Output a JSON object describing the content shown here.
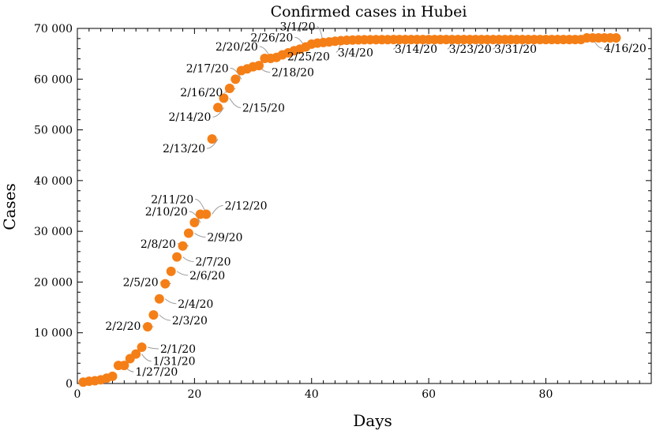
{
  "chart_data": {
    "type": "scatter",
    "title": "Confirmed cases in Hubei",
    "xlabel": "Days",
    "ylabel": "Cases",
    "xlim": [
      0,
      98
    ],
    "ylim": [
      0,
      70000
    ],
    "xticks": [
      0,
      20,
      40,
      60,
      80
    ],
    "xtick_labels": [
      "0",
      "20",
      "40",
      "60",
      "80"
    ],
    "yticks": [
      0,
      10000,
      20000,
      30000,
      40000,
      50000,
      60000,
      70000
    ],
    "ytick_labels": [
      "0",
      "10 000",
      "20 000",
      "30 000",
      "40 000",
      "50 000",
      "60 000",
      "70 000"
    ],
    "grid": false,
    "marker_color": "#f57f17",
    "series": [
      {
        "x": [
          1,
          2,
          3,
          4,
          5,
          6,
          7,
          8,
          9,
          10,
          11,
          12,
          13,
          14,
          15,
          16,
          17,
          18,
          19,
          20,
          21,
          22,
          23,
          24,
          25,
          26,
          27,
          28,
          29,
          30,
          31,
          32,
          33,
          34,
          35,
          36,
          37,
          38,
          39,
          40,
          41,
          42,
          43,
          44,
          45,
          46,
          47,
          48,
          49,
          50,
          51,
          52,
          53,
          54,
          55,
          56,
          57,
          58,
          59,
          60,
          61,
          62,
          63,
          64,
          65,
          66,
          67,
          68,
          69,
          70,
          71,
          72,
          73,
          74,
          75,
          76,
          77,
          78,
          79,
          80,
          81,
          82,
          83,
          84,
          85,
          86,
          87,
          88,
          89,
          90,
          91,
          92
        ],
        "y": [
          270,
          444,
          549,
          729,
          1052,
          1423,
          3554,
          3554,
          4903,
          5806,
          7153,
          11177,
          13522,
          16678,
          19665,
          22112,
          24953,
          27100,
          29631,
          31728,
          33366,
          33366,
          48206,
          54406,
          56249,
          58182,
          59989,
          61682,
          62031,
          62442,
          62662,
          64084,
          64084,
          64287,
          64786,
          65187,
          65596,
          65914,
          66337,
          66907,
          67103,
          67217,
          67332,
          67466,
          67592,
          67666,
          67707,
          67743,
          67760,
          67773,
          67781,
          67786,
          67790,
          67794,
          67798,
          67799,
          67800,
          67800,
          67801,
          67801,
          67801,
          67801,
          67801,
          67801,
          67801,
          67801,
          67801,
          67801,
          67801,
          67801,
          67801,
          67801,
          67801,
          67801,
          67801,
          67801,
          67801,
          67801,
          67802,
          67802,
          67802,
          67803,
          67803,
          67803,
          67803,
          67803,
          68128,
          68128,
          68128,
          68128,
          68128,
          68128
        ]
      }
    ],
    "annotations": [
      {
        "x": 8,
        "y": 3554,
        "text": "1/27/20"
      },
      {
        "x": 11,
        "y": 5806,
        "text": "1/31/20"
      },
      {
        "x": 12,
        "y": 7153,
        "text": "2/1/20"
      },
      {
        "x": 13,
        "y": 11177,
        "text": "2/2/20"
      },
      {
        "x": 14,
        "y": 13522,
        "text": "2/3/20"
      },
      {
        "x": 15,
        "y": 16678,
        "text": "2/4/20"
      },
      {
        "x": 16,
        "y": 19665,
        "text": "2/5/20"
      },
      {
        "x": 17,
        "y": 22112,
        "text": "2/6/20"
      },
      {
        "x": 18,
        "y": 24953,
        "text": "2/7/20"
      },
      {
        "x": 19,
        "y": 27100,
        "text": "2/8/20"
      },
      {
        "x": 20,
        "y": 29631,
        "text": "2/9/20"
      },
      {
        "x": 21,
        "y": 31728,
        "text": "2/10/20"
      },
      {
        "x": 22,
        "y": 33366,
        "text": "2/11/20"
      },
      {
        "x": 23,
        "y": 33366,
        "text": "2/12/20"
      },
      {
        "x": 24,
        "y": 48206,
        "text": "2/13/20"
      },
      {
        "x": 25,
        "y": 54406,
        "text": "2/14/20"
      },
      {
        "x": 26,
        "y": 56249,
        "text": "2/15/20"
      },
      {
        "x": 27,
        "y": 58182,
        "text": "2/16/20"
      },
      {
        "x": 28,
        "y": 59989,
        "text": "2/17/20"
      },
      {
        "x": 31,
        "y": 62442,
        "text": "2/18/20"
      },
      {
        "x": 33,
        "y": 64084,
        "text": "2/20/20"
      },
      {
        "x": 38,
        "y": 65596,
        "text": "2/25/20"
      },
      {
        "x": 39,
        "y": 65914,
        "text": "2/26/20"
      },
      {
        "x": 42,
        "y": 67103,
        "text": "3/1/20"
      },
      {
        "x": 45,
        "y": 67466,
        "text": "3/4/20"
      },
      {
        "x": 55,
        "y": 67794,
        "text": "3/14/20"
      },
      {
        "x": 64,
        "y": 67801,
        "text": "3/23/20"
      },
      {
        "x": 72,
        "y": 67801,
        "text": "3/31/20"
      },
      {
        "x": 88,
        "y": 68128,
        "text": "4/16/20"
      }
    ]
  }
}
